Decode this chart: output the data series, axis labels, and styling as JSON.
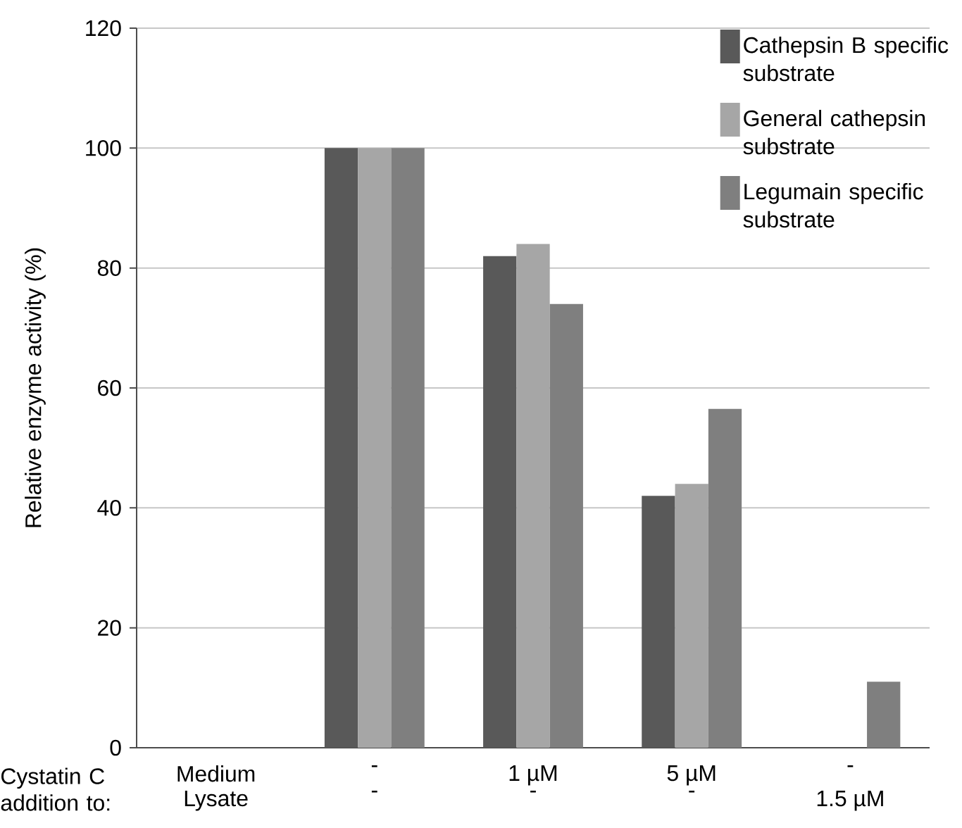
{
  "chart_data": {
    "type": "bar",
    "ylabel": "Relative enzyme activity (%)",
    "xlabel": "Cystatin C addition to:",
    "categories": [
      "Medium",
      "-",
      "1 µM",
      "5 µM",
      "-"
    ],
    "annotations": [
      "Lysate",
      "-",
      "-",
      "-",
      "1.5 µM"
    ],
    "series": [
      {
        "name": "Cathepsin B specific substrate",
        "color": "#595959",
        "values": [
          null,
          100,
          82,
          42,
          null
        ]
      },
      {
        "name": "General cathepsin substrate",
        "color": "#a6a6a6",
        "values": [
          null,
          100,
          84,
          44,
          null
        ]
      },
      {
        "name": "Legumain specific substrate",
        "color": "#7f7f7f",
        "values": [
          null,
          100,
          74,
          56.5,
          11
        ]
      }
    ],
    "ylim": [
      0,
      120
    ],
    "yticks": [
      0,
      20,
      40,
      60,
      80,
      100,
      120
    ],
    "grid": "y",
    "legend": "top right"
  }
}
